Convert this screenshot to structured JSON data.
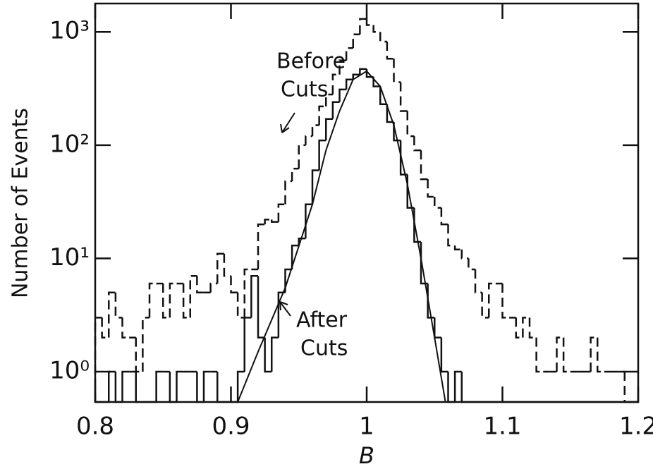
{
  "chart_data": {
    "type": "histogram",
    "xlabel": "B",
    "ylabel": "Number of Events",
    "yscale": "log",
    "xlim": [
      0.8,
      1.2
    ],
    "ylim": [
      0.54,
      1780
    ],
    "xticks": [
      0.8,
      0.9,
      1,
      1.1,
      1.2
    ],
    "yticks": [
      {
        "value": 1,
        "label": "10⁰"
      },
      {
        "value": 10,
        "label": "10¹"
      },
      {
        "value": 100,
        "label": "10²"
      },
      {
        "value": 1000,
        "label": "10³"
      }
    ],
    "bins": [
      0.8,
      0.805,
      0.81,
      0.815,
      0.82,
      0.825,
      0.83,
      0.835,
      0.84,
      0.845,
      0.85,
      0.855,
      0.86,
      0.865,
      0.87,
      0.875,
      0.88,
      0.885,
      0.89,
      0.895,
      0.9,
      0.905,
      0.91,
      0.915,
      0.92,
      0.925,
      0.93,
      0.935,
      0.94,
      0.945,
      0.95,
      0.955,
      0.96,
      0.965,
      0.97,
      0.975,
      0.98,
      0.985,
      0.99,
      0.995,
      1.0,
      1.005,
      1.01,
      1.015,
      1.02,
      1.025,
      1.03,
      1.035,
      1.04,
      1.045,
      1.05,
      1.055,
      1.06,
      1.065,
      1.07,
      1.075,
      1.08,
      1.085,
      1.09,
      1.095,
      1.1,
      1.105,
      1.11,
      1.115,
      1.12,
      1.125,
      1.13,
      1.135,
      1.14,
      1.145,
      1.15,
      1.155,
      1.16,
      1.165,
      1.17,
      1.175,
      1.18,
      1.185,
      1.19,
      1.195,
      1.2
    ],
    "series": [
      {
        "color": "#111111",
        "style": "dashed",
        "values": [
          3,
          2,
          5,
          3,
          2,
          2,
          1,
          3,
          6,
          6,
          3,
          6,
          6,
          3,
          7,
          5,
          5,
          6,
          11,
          7,
          5,
          3,
          8,
          8,
          20,
          22,
          21,
          30,
          48,
          62,
          100,
          120,
          150,
          220,
          280,
          420,
          560,
          720,
          950,
          1300,
          1150,
          1000,
          820,
          580,
          360,
          200,
          120,
          90,
          50,
          35,
          28,
          20,
          13,
          12,
          10,
          8,
          5,
          3,
          6,
          6,
          3,
          3,
          2,
          3,
          2,
          1,
          1,
          1,
          2,
          1,
          1,
          1,
          1,
          2,
          1,
          1,
          1,
          1,
          0,
          0
        ]
      },
      {
        "color": "#111111",
        "style": "solid",
        "values": [
          0,
          0,
          1,
          0,
          1,
          1,
          0,
          0,
          0,
          1,
          1,
          0,
          1,
          1,
          1,
          0,
          1,
          1,
          0,
          0,
          0,
          1,
          3,
          7,
          2,
          1,
          2,
          5,
          8,
          13,
          15,
          30,
          60,
          110,
          170,
          240,
          310,
          380,
          420,
          470,
          400,
          330,
          230,
          160,
          110,
          55,
          28,
          14,
          6,
          3,
          2,
          1,
          0,
          1,
          0,
          0,
          0,
          0,
          0,
          0,
          0,
          0,
          0,
          0,
          0,
          0,
          0,
          0,
          0,
          0,
          0,
          0,
          0,
          0,
          0,
          0,
          0,
          0,
          0,
          0
        ]
      }
    ],
    "curve": {
      "color": "#111111",
      "x": [
        0.905,
        0.92,
        0.94,
        0.96,
        0.97,
        0.98,
        0.99,
        1.0,
        1.01,
        1.02,
        1.03,
        1.04,
        1.05,
        1.058
      ],
      "values": [
        0.54,
        1.5,
        5.5,
        30,
        90,
        200,
        380,
        450,
        330,
        150,
        45,
        10,
        2,
        0.54
      ]
    },
    "annotations": [
      [
        "Before",
        "Cuts"
      ],
      [
        "After",
        "Cuts"
      ]
    ]
  }
}
